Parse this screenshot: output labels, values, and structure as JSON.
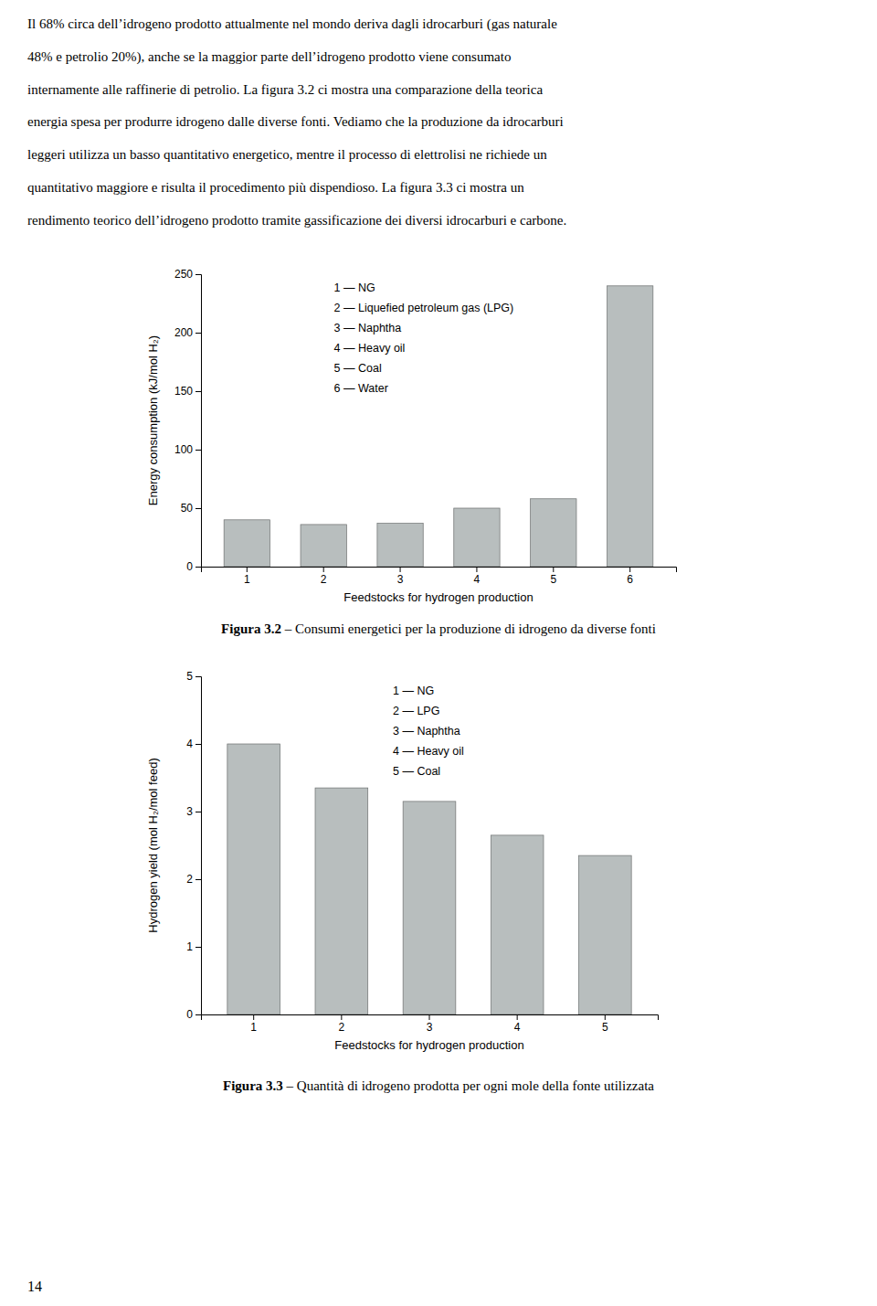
{
  "chart_data": [
    {
      "type": "bar",
      "categories": [
        1,
        2,
        3,
        4,
        5,
        6
      ],
      "values": [
        40,
        36,
        37,
        50,
        58,
        240
      ],
      "color": "#b8bebe",
      "xlabel": "Feedstocks for hydrogen production",
      "ylabel": "Energy consumption (kJ/mol H₂)",
      "ylim": [
        0,
        250
      ],
      "yticks": [
        0,
        50,
        100,
        150,
        200,
        250
      ],
      "grid": false,
      "annotations": [
        "1 — NG",
        "2 — Liquefied petroleum gas (LPG)",
        "3 — Naphtha",
        "4 — Heavy oil",
        "5 — Coal",
        "6 — Water"
      ]
    },
    {
      "type": "bar",
      "categories": [
        1,
        2,
        3,
        4,
        5
      ],
      "values": [
        4.0,
        3.35,
        3.15,
        2.65,
        2.35
      ],
      "color": "#b8bebe",
      "xlabel": "Feedstocks for hydrogen production",
      "ylabel": "Hydrogen yield (mol H₂/mol feed)",
      "ylim": [
        0,
        5
      ],
      "yticks": [
        0,
        1,
        2,
        3,
        4,
        5
      ],
      "grid": false,
      "annotations": [
        "1 — NG",
        "2 — LPG",
        "3 — Naphtha",
        "4 — Heavy oil",
        "5 — Coal"
      ]
    }
  ],
  "text_lines": [
    "Il 68% circa dell’idrogeno prodotto attualmente nel mondo deriva dagli idrocarburi (gas naturale",
    "48% e petrolio 20%), anche se la maggior parte dell’idrogeno prodotto viene consumato",
    "internamente alle raffinerie di petrolio. La figura 3.2 ci mostra una comparazione della teorica",
    "energia spesa per produrre idrogeno dalle diverse fonti. Vediamo che la produzione da idrocarburi",
    "leggeri utilizza un basso quantitativo energetico, mentre il processo di elettrolisi ne richiede un",
    "quantitativo maggiore e risulta il procedimento più dispendioso. La figura 3.3 ci mostra un",
    "rendimento teorico dell’idrogeno prodotto tramite gassificazione dei diversi idrocarburi e carbone."
  ],
  "captions": [
    {
      "label": "Figura 3.2",
      "text": " – Consumi energetici per la produzione di idrogeno da diverse fonti"
    },
    {
      "label": "Figura 3.3",
      "text": " – Quantità di idrogeno prodotta per ogni mole della fonte utilizzata"
    }
  ],
  "page_number": "14"
}
